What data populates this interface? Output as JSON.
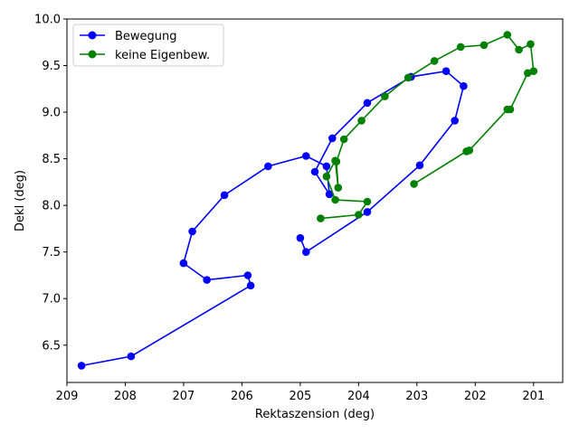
{
  "chart_data": {
    "type": "line",
    "xlabel": "Rektaszension (deg)",
    "ylabel": "Dekl (deg)",
    "xlim": [
      209,
      200.5
    ],
    "ylim": [
      6.1,
      10.0
    ],
    "x_inverted": true,
    "xticks": [
      209,
      208,
      207,
      206,
      205,
      204,
      203,
      202,
      201
    ],
    "yticks": [
      6.5,
      7.0,
      7.5,
      8.0,
      8.5,
      9.0,
      9.5,
      10.0
    ],
    "grid": false,
    "legend_position": "top-left",
    "series": [
      {
        "name": "Bewegung",
        "color": "#0000ff",
        "marker": "circle",
        "points": [
          [
            208.75,
            6.28
          ],
          [
            207.9,
            6.38
          ],
          [
            205.85,
            7.14
          ],
          [
            205.9,
            7.25
          ],
          [
            206.6,
            7.2
          ],
          [
            207.0,
            7.38
          ],
          [
            206.85,
            7.72
          ],
          [
            206.3,
            8.11
          ],
          [
            205.55,
            8.42
          ],
          [
            204.9,
            8.53
          ],
          [
            204.55,
            8.42
          ],
          [
            204.5,
            8.12
          ],
          [
            204.75,
            8.36
          ],
          [
            204.45,
            8.72
          ],
          [
            203.85,
            9.1
          ],
          [
            203.1,
            9.38
          ],
          [
            202.5,
            9.44
          ],
          [
            202.2,
            9.28
          ],
          [
            202.35,
            8.91
          ],
          [
            202.95,
            8.43
          ],
          [
            203.85,
            7.93
          ],
          [
            204.9,
            7.5
          ],
          [
            205.0,
            7.65
          ]
        ]
      },
      {
        "name": "keine Eigenbew.",
        "color": "#008000",
        "marker": "circle",
        "points": [
          [
            204.65,
            7.86
          ],
          [
            204.0,
            7.9
          ],
          [
            203.85,
            8.04
          ],
          [
            204.4,
            8.06
          ],
          [
            204.55,
            8.31
          ],
          [
            204.4,
            8.48
          ],
          [
            204.35,
            8.19
          ],
          [
            204.38,
            8.47
          ],
          [
            204.25,
            8.71
          ],
          [
            203.95,
            8.91
          ],
          [
            203.55,
            9.17
          ],
          [
            203.15,
            9.37
          ],
          [
            202.7,
            9.55
          ],
          [
            202.25,
            9.7
          ],
          [
            201.85,
            9.72
          ],
          [
            201.45,
            9.83
          ],
          [
            201.25,
            9.67
          ],
          [
            201.05,
            9.73
          ],
          [
            201.0,
            9.44
          ],
          [
            201.1,
            9.42
          ],
          [
            201.4,
            9.03
          ],
          [
            201.45,
            9.03
          ],
          [
            202.1,
            8.59
          ],
          [
            202.15,
            8.58
          ],
          [
            203.05,
            8.23
          ]
        ]
      }
    ]
  }
}
